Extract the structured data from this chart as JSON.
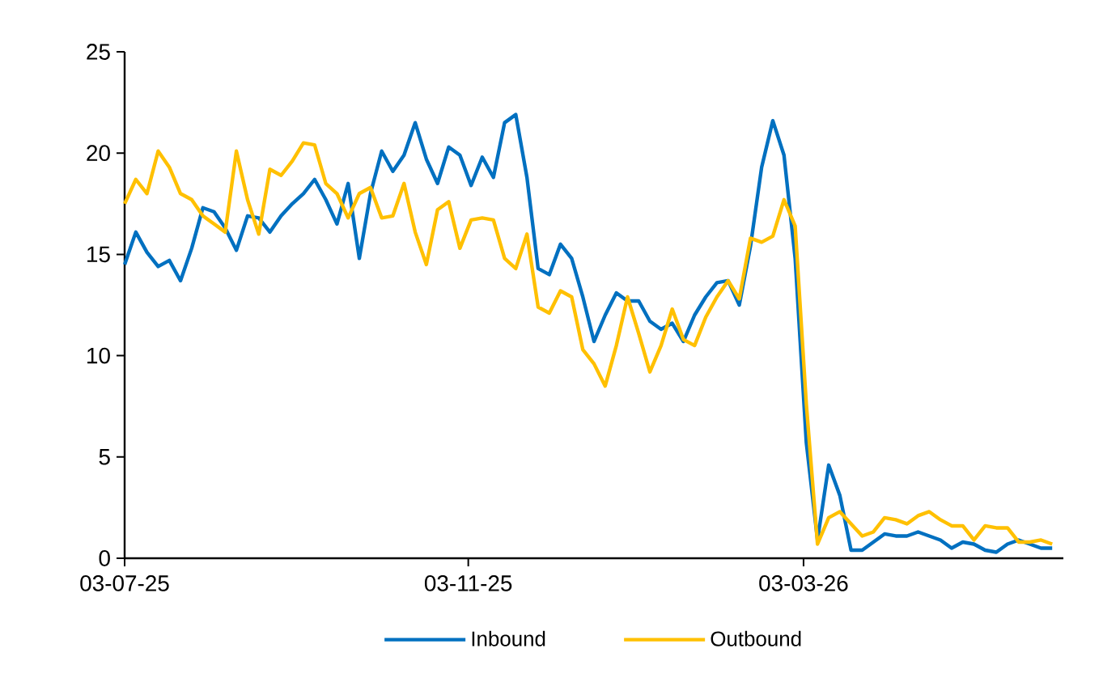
{
  "chart_data": {
    "type": "line",
    "x": [
      "2025-07-03",
      "2025-07-07",
      "2025-07-11",
      "2025-07-15",
      "2025-07-19",
      "2025-07-23",
      "2025-07-27",
      "2025-07-31",
      "2025-08-04",
      "2025-08-08",
      "2025-08-12",
      "2025-08-16",
      "2025-08-20",
      "2025-08-24",
      "2025-08-28",
      "2025-09-01",
      "2025-09-05",
      "2025-09-09",
      "2025-09-13",
      "2025-09-17",
      "2025-09-21",
      "2025-09-25",
      "2025-09-29",
      "2025-10-03",
      "2025-10-07",
      "2025-10-11",
      "2025-10-15",
      "2025-10-19",
      "2025-10-23",
      "2025-10-27",
      "2025-10-31",
      "2025-11-04",
      "2025-11-08",
      "2025-11-12",
      "2025-11-16",
      "2025-11-20",
      "2025-11-24",
      "2025-11-28",
      "2025-12-02",
      "2025-12-06",
      "2025-12-10",
      "2025-12-14",
      "2025-12-18",
      "2025-12-22",
      "2025-12-26",
      "2025-12-30",
      "2026-01-03",
      "2026-01-07",
      "2026-01-11",
      "2026-01-15",
      "2026-01-19",
      "2026-01-23",
      "2026-01-27",
      "2026-01-31",
      "2026-02-04",
      "2026-02-08",
      "2026-02-12",
      "2026-02-16",
      "2026-02-20",
      "2026-02-24",
      "2026-02-28",
      "2026-03-04",
      "2026-03-08",
      "2026-03-12",
      "2026-03-16",
      "2026-03-20",
      "2026-03-24",
      "2026-03-28",
      "2026-04-01",
      "2026-04-05",
      "2026-04-09",
      "2026-04-13",
      "2026-04-17",
      "2026-04-21",
      "2026-04-25",
      "2026-04-29",
      "2026-05-03",
      "2026-05-07",
      "2026-05-11",
      "2026-05-15",
      "2026-05-19",
      "2026-05-23",
      "2026-05-27",
      "2026-05-31"
    ],
    "series": [
      {
        "name": "Inbound",
        "color": "#0070c0",
        "values": [
          14.5,
          16.1,
          15.1,
          14.4,
          14.7,
          13.7,
          15.3,
          17.3,
          17.1,
          16.3,
          15.2,
          16.9,
          16.8,
          16.1,
          16.9,
          17.5,
          18.0,
          18.7,
          17.7,
          16.5,
          18.5,
          14.8,
          18.0,
          20.1,
          19.1,
          19.9,
          21.5,
          19.7,
          18.5,
          20.3,
          19.9,
          18.4,
          19.8,
          18.8,
          21.5,
          21.9,
          18.8,
          14.3,
          14.0,
          15.5,
          14.8,
          12.9,
          10.7,
          12.0,
          13.1,
          12.7,
          12.7,
          11.7,
          11.3,
          11.6,
          10.7,
          12.0,
          12.9,
          13.6,
          13.7,
          12.5,
          15.4,
          19.3,
          21.6,
          19.9,
          14.8,
          5.7,
          0.9,
          4.6,
          3.1,
          0.4,
          0.4,
          0.8,
          1.2,
          1.1,
          1.1,
          1.3,
          1.1,
          0.9,
          0.5,
          0.8,
          0.7,
          0.4,
          0.3,
          0.7,
          0.9,
          0.7,
          0.5,
          0.5
        ]
      },
      {
        "name": "Outbound",
        "color": "#ffc000",
        "values": [
          17.5,
          18.7,
          18.0,
          20.1,
          19.3,
          18.0,
          17.7,
          16.9,
          16.5,
          16.1,
          20.1,
          17.7,
          16.0,
          19.2,
          18.9,
          19.6,
          20.5,
          20.4,
          18.5,
          18.0,
          16.8,
          18.0,
          18.3,
          16.8,
          16.9,
          18.5,
          16.1,
          14.5,
          17.2,
          17.6,
          15.3,
          16.7,
          16.8,
          16.7,
          14.8,
          14.3,
          16.0,
          12.4,
          12.1,
          13.2,
          12.9,
          10.3,
          9.6,
          8.5,
          10.5,
          12.9,
          11.1,
          9.2,
          10.5,
          12.3,
          10.8,
          10.5,
          11.9,
          12.9,
          13.7,
          12.8,
          15.8,
          15.6,
          15.9,
          17.7,
          16.4,
          7.6,
          0.7,
          2.0,
          2.3,
          1.7,
          1.1,
          1.3,
          2.0,
          1.9,
          1.7,
          2.1,
          2.3,
          1.9,
          1.6,
          1.6,
          0.9,
          1.6,
          1.5,
          1.5,
          0.8,
          0.8,
          0.9,
          0.7
        ]
      }
    ],
    "xlim": [
      "2025-07-03",
      "2026-06-04"
    ],
    "xticks": [
      {
        "value": "2025-07-03",
        "label": "03-07-25"
      },
      {
        "value": "2025-11-03",
        "label": "03-11-25"
      },
      {
        "value": "2026-03-03",
        "label": "03-03-26"
      }
    ],
    "ylim": [
      0,
      25
    ],
    "yticks": [
      0,
      5,
      10,
      15,
      20,
      25
    ],
    "grid": false,
    "legend": "bottom",
    "marker": "none",
    "line_style": "solid"
  }
}
